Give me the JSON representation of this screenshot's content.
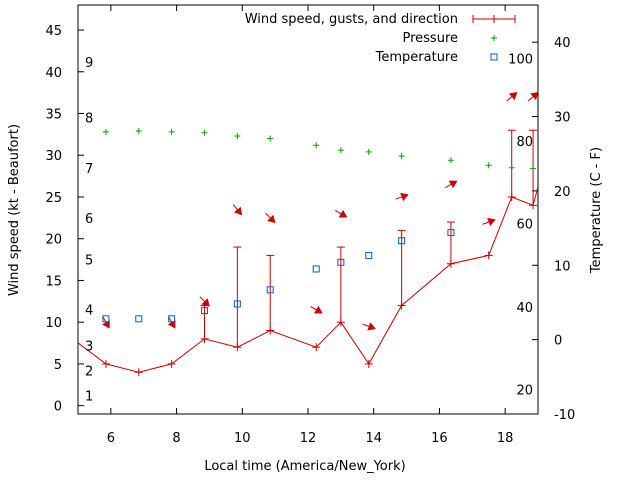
{
  "chart_data": {
    "type": "line",
    "xlabel": "Local time (America/New_York)",
    "ylabel_left": "Wind speed (kt - Beaufort)",
    "ylabel_right": "Temperature (C - F)",
    "xlim": [
      5,
      19
    ],
    "ylim_left": [
      -1,
      48
    ],
    "ylim_right": [
      -10,
      45
    ],
    "x_ticks": [
      6,
      8,
      10,
      12,
      14,
      16,
      18
    ],
    "y_ticks_left": [
      0,
      5,
      10,
      15,
      20,
      25,
      30,
      35,
      40,
      45
    ],
    "y_ticks_right": [
      -10,
      0,
      10,
      20,
      30,
      40
    ],
    "beaufort_labels": [
      {
        "text": "1",
        "kt": 1.2
      },
      {
        "text": "2",
        "kt": 4.2
      },
      {
        "text": "3",
        "kt": 7.2
      },
      {
        "text": "4",
        "kt": 11.5
      },
      {
        "text": "5",
        "kt": 17.5
      },
      {
        "text": "6",
        "kt": 22.5
      },
      {
        "text": "7",
        "kt": 28.5
      },
      {
        "text": "8",
        "kt": 34.5
      },
      {
        "text": "9",
        "kt": 41.2
      }
    ],
    "fahrenheit_labels": [
      {
        "text": "20",
        "degC": -6.7
      },
      {
        "text": "40",
        "degC": 4.4
      },
      {
        "text": "60",
        "degC": 15.6
      },
      {
        "text": "80",
        "degC": 26.7
      },
      {
        "text": "100",
        "degC": 37.8
      }
    ],
    "legend": [
      {
        "label": "Wind speed, gusts, and direction",
        "color": "#cc0000",
        "marker": "errorbar"
      },
      {
        "label": "Pressure",
        "color": "#00a000",
        "marker": "plus"
      },
      {
        "label": "Temperature",
        "color": "#0060c0",
        "marker": "square"
      }
    ],
    "wind": [
      {
        "x": 4.5,
        "speed": 9
      },
      {
        "x": 5.85,
        "speed": 5
      },
      {
        "x": 6.85,
        "speed": 4
      },
      {
        "x": 7.85,
        "speed": 5
      },
      {
        "x": 8.85,
        "speed": 8,
        "gust": 12
      },
      {
        "x": 9.85,
        "speed": 7,
        "gust": 19
      },
      {
        "x": 10.85,
        "speed": 9,
        "gust": 18
      },
      {
        "x": 12.25,
        "speed": 7
      },
      {
        "x": 13.0,
        "speed": 10,
        "gust": 19
      },
      {
        "x": 13.85,
        "speed": 5
      },
      {
        "x": 14.85,
        "speed": 12,
        "gust": 21
      },
      {
        "x": 16.35,
        "speed": 17,
        "gust": 22
      },
      {
        "x": 17.5,
        "speed": 18
      },
      {
        "x": 18.2,
        "speed": 25,
        "gust": 33
      },
      {
        "x": 18.85,
        "speed": 24,
        "gust": 33
      },
      {
        "x": 19.4,
        "speed": 32
      }
    ],
    "wind_direction_arrows": [
      {
        "x": 5.85,
        "kt": 10,
        "dir_from_deg": 330
      },
      {
        "x": 7.85,
        "kt": 10,
        "dir_from_deg": 330
      },
      {
        "x": 8.85,
        "kt": 12.5,
        "dir_from_deg": 315
      },
      {
        "x": 9.85,
        "kt": 23.5,
        "dir_from_deg": 320
      },
      {
        "x": 10.85,
        "kt": 22.5,
        "dir_from_deg": 315
      },
      {
        "x": 12.25,
        "kt": 11.5,
        "dir_from_deg": 300
      },
      {
        "x": 13.0,
        "kt": 23,
        "dir_from_deg": 300
      },
      {
        "x": 13.85,
        "kt": 9.5,
        "dir_from_deg": 290
      },
      {
        "x": 14.85,
        "kt": 25,
        "dir_from_deg": 250
      },
      {
        "x": 16.35,
        "kt": 26.5,
        "dir_from_deg": 240
      },
      {
        "x": 17.5,
        "kt": 22,
        "dir_from_deg": 250
      },
      {
        "x": 18.2,
        "kt": 37,
        "dir_from_deg": 230
      },
      {
        "x": 18.85,
        "kt": 37,
        "dir_from_deg": 230
      }
    ],
    "pressure": {
      "color": "#00a000",
      "x": [
        5.85,
        6.85,
        7.85,
        8.85,
        9.85,
        10.85,
        12.25,
        13.0,
        13.85,
        14.85,
        16.35,
        17.5,
        18.2,
        18.85
      ],
      "y_kt_axis": [
        32.8,
        32.9,
        32.8,
        32.7,
        32.3,
        32.0,
        31.2,
        30.6,
        30.4,
        29.9,
        29.4,
        28.8,
        28.5,
        28.4
      ]
    },
    "temperature": {
      "color": "#0060c0",
      "unit": "C",
      "x": [
        5.85,
        6.85,
        7.85,
        8.85,
        9.85,
        10.85,
        12.25,
        13.0,
        13.85,
        14.85,
        16.35
      ],
      "values": [
        2.8,
        2.8,
        2.8,
        3.9,
        4.8,
        6.7,
        9.5,
        10.4,
        11.3,
        13.3,
        14.4
      ]
    }
  }
}
